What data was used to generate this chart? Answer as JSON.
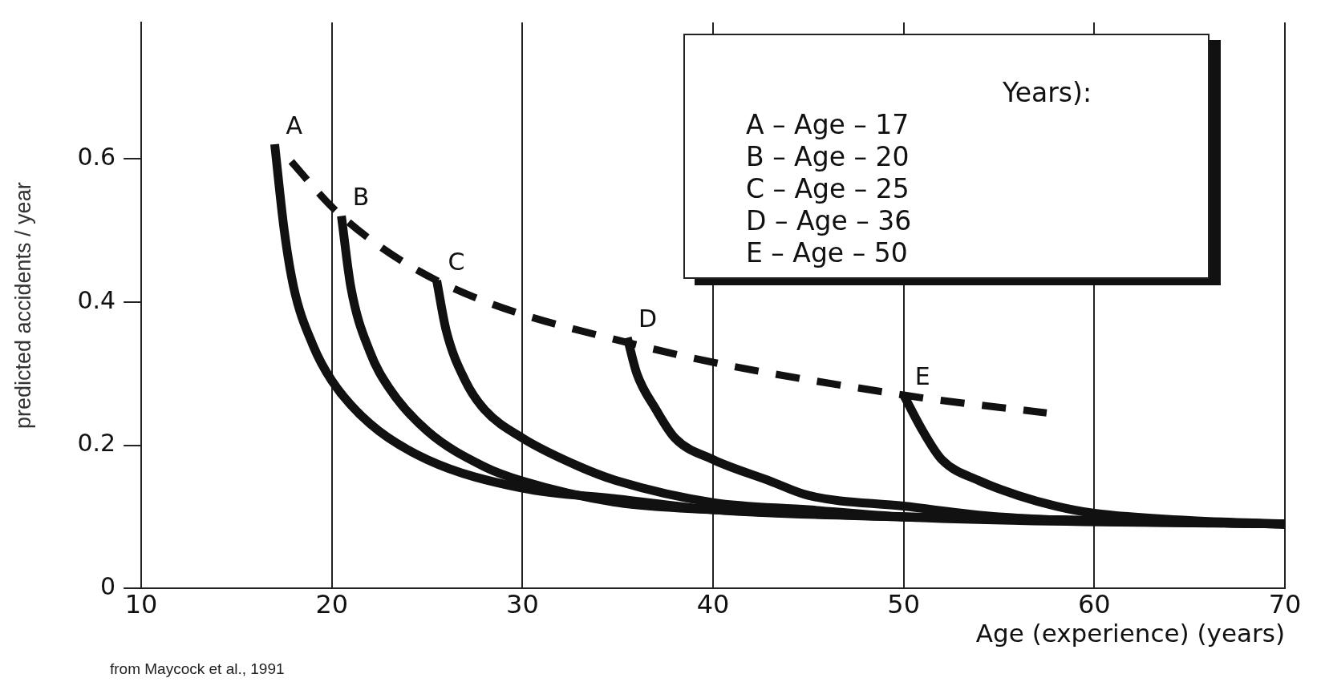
{
  "chart_data": {
    "type": "line",
    "xlabel": "Age (experience) (years)",
    "ylabel": "predicted accidents / year",
    "xlim": [
      10,
      70
    ],
    "xticks": [
      10,
      20,
      30,
      40,
      50,
      60,
      70
    ],
    "ylim": [
      0,
      0.79
    ],
    "yticks": [
      0,
      0.2,
      0.4,
      0.6
    ],
    "grid": "x",
    "legend": false,
    "marker": "none",
    "series": [
      {
        "name": "A",
        "color": "#111111",
        "line_style": "solid",
        "x": [
          17,
          17.5,
          18,
          19,
          20,
          22,
          25,
          30,
          35,
          40,
          50,
          60,
          70
        ],
        "values": [
          0.62,
          0.5,
          0.42,
          0.34,
          0.29,
          0.23,
          0.18,
          0.14,
          0.125,
          0.11,
          0.1,
          0.095,
          0.09
        ]
      },
      {
        "name": "B",
        "color": "#111111",
        "line_style": "solid",
        "x": [
          20.5,
          21,
          22,
          23,
          25,
          28,
          30,
          35,
          40,
          50,
          70
        ],
        "values": [
          0.52,
          0.42,
          0.33,
          0.28,
          0.22,
          0.17,
          0.15,
          0.12,
          0.11,
          0.1,
          0.09
        ]
      },
      {
        "name": "C",
        "color": "#111111",
        "line_style": "solid",
        "x": [
          25.5,
          26,
          27,
          28,
          30,
          33,
          35,
          40,
          45,
          50,
          70
        ],
        "values": [
          0.43,
          0.36,
          0.29,
          0.25,
          0.21,
          0.17,
          0.15,
          0.12,
          0.11,
          0.1,
          0.09
        ]
      },
      {
        "name": "D",
        "color": "#111111",
        "line_style": "solid",
        "x": [
          35.5,
          36,
          37,
          38,
          40,
          43,
          45,
          50,
          55,
          70
        ],
        "values": [
          0.35,
          0.3,
          0.25,
          0.21,
          0.18,
          0.15,
          0.13,
          0.115,
          0.1,
          0.09
        ]
      },
      {
        "name": "E",
        "color": "#111111",
        "line_style": "solid",
        "x": [
          50,
          51,
          52,
          54,
          56,
          58,
          60,
          65,
          70
        ],
        "values": [
          0.27,
          0.22,
          0.18,
          0.15,
          0.13,
          0.115,
          0.105,
          0.095,
          0.09
        ]
      },
      {
        "color": "#111111",
        "line_style": "dashed",
        "x": [
          17.4,
          20.5,
          25.5,
          36,
          50,
          57.5
        ],
        "values": [
          0.61,
          0.52,
          0.43,
          0.34,
          0.27,
          0.245
        ]
      }
    ],
    "annotations": [
      "Years):",
      "A – Age – 17",
      "B – Age – 20",
      "C – Age – 25",
      "D – Age – 36",
      "E – Age – 50",
      "from Maycock et al., 1991"
    ]
  }
}
